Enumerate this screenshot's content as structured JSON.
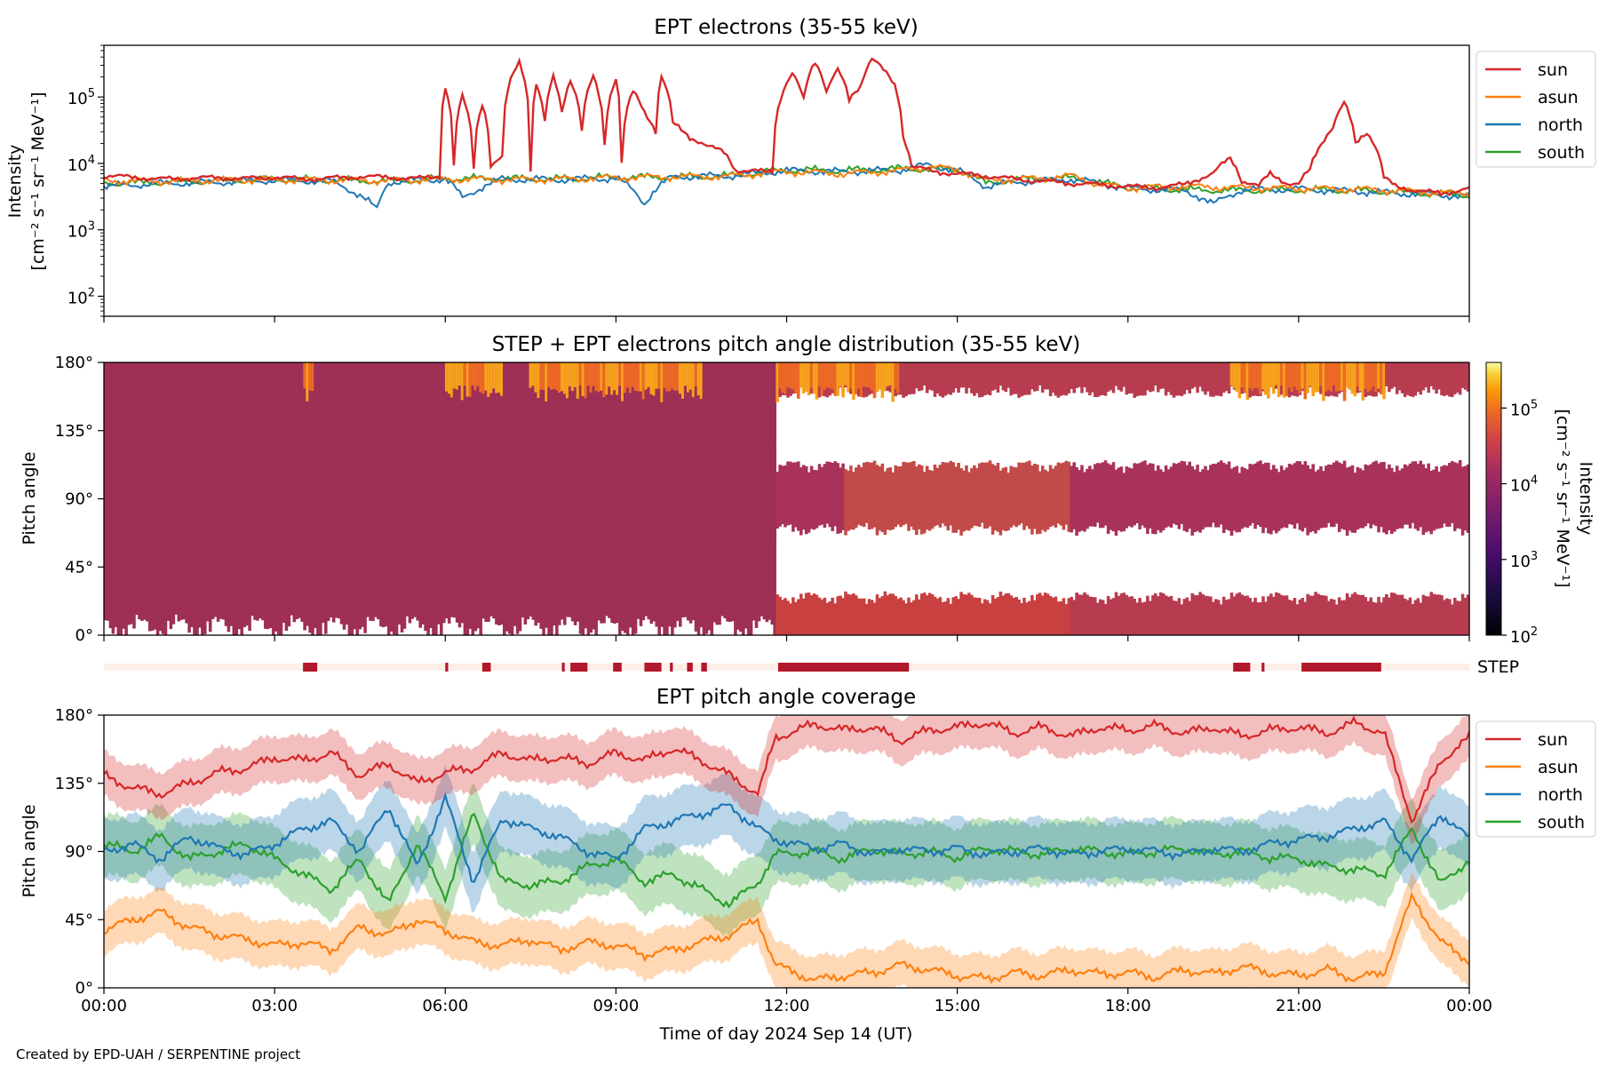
{
  "footer": "Created by EPD-UAH / SERPENTINE project",
  "colors": {
    "sun": "#d62728",
    "asun": "#ff7f0e",
    "north": "#1f77b4",
    "south": "#2ca02c",
    "step_bar": "#b2182b",
    "step_bg": "#fdeee7"
  },
  "chart_data": [
    {
      "type": "line",
      "title": "EPT electrons (35-55 keV)",
      "ylabel": [
        "Intensity",
        "[cm⁻² s⁻¹ sr⁻¹ MeV⁻¹]"
      ],
      "yscale": "log",
      "ylim": [
        50,
        600000
      ],
      "yticks": [
        {
          "v": 100,
          "b": "10",
          "e": "2"
        },
        {
          "v": 1000,
          "b": "10",
          "e": "3"
        },
        {
          "v": 10000,
          "b": "10",
          "e": "4"
        },
        {
          "v": 100000,
          "b": "10",
          "e": "5"
        }
      ],
      "xlim_hours": [
        0,
        24
      ],
      "legend": "outside-right",
      "series": [
        {
          "name": "sun",
          "x_hours": [
            0,
            0.5,
            1,
            1.5,
            2,
            2.5,
            3,
            3.5,
            4,
            4.5,
            5,
            5.5,
            5.9,
            6.0,
            6.15,
            6.3,
            6.5,
            6.65,
            6.8,
            7.0,
            7.3,
            7.5,
            7.6,
            7.75,
            7.9,
            8.05,
            8.2,
            8.4,
            8.6,
            8.8,
            9.0,
            9.1,
            9.3,
            9.5,
            9.7,
            9.8,
            10.0,
            10.3,
            10.6,
            10.9,
            11.1,
            11.3,
            11.75,
            11.9,
            12.1,
            12.3,
            12.5,
            12.7,
            12.9,
            13.1,
            13.3,
            13.5,
            13.7,
            13.9,
            14.05,
            14.2,
            14.6,
            15,
            15.5,
            16,
            16.5,
            17,
            17.5,
            18,
            18.5,
            19,
            19.5,
            19.8,
            20.0,
            20.3,
            20.5,
            20.8,
            21,
            21.2,
            21.4,
            21.6,
            21.8,
            22.0,
            22.2,
            22.5,
            22.7,
            23,
            23.5,
            24
          ],
          "values": [
            6500,
            6200,
            5800,
            6000,
            6100,
            5900,
            6200,
            5800,
            6000,
            6300,
            6200,
            5900,
            6500,
            140000,
            9000,
            100000,
            9000,
            80000,
            9000,
            12000,
            350000,
            8000,
            150000,
            40000,
            200000,
            60000,
            180000,
            30000,
            200000,
            20000,
            190000,
            10000,
            120000,
            60000,
            30000,
            200000,
            40000,
            25000,
            18000,
            15000,
            8000,
            7500,
            7800,
            100000,
            220000,
            90000,
            350000,
            120000,
            250000,
            90000,
            150000,
            380000,
            250000,
            150000,
            25000,
            9000,
            7500,
            7000,
            6500,
            5800,
            5400,
            5000,
            4800,
            4500,
            4300,
            4800,
            7000,
            12000,
            5500,
            4500,
            7000,
            5000,
            4800,
            8000,
            20000,
            35000,
            80000,
            20000,
            30000,
            6000,
            4500,
            4000,
            3500,
            4200
          ]
        },
        {
          "name": "asun",
          "x_hours": [
            0,
            1,
            2,
            3,
            4,
            5,
            6,
            7,
            8,
            9,
            10,
            11,
            11.9,
            12.5,
            13,
            14,
            14.5,
            15,
            15.5,
            16,
            16.5,
            17,
            17.5,
            18,
            19,
            20,
            21,
            22,
            23,
            24
          ],
          "values": [
            5500,
            5400,
            5600,
            5700,
            5600,
            5500,
            5800,
            5700,
            5800,
            6100,
            6300,
            6400,
            7500,
            7300,
            7000,
            7800,
            9000,
            8000,
            5500,
            5800,
            6000,
            6500,
            4800,
            4300,
            4500,
            4300,
            4200,
            4100,
            3800,
            3500
          ]
        },
        {
          "name": "north",
          "x_hours": [
            0,
            1,
            2,
            3,
            4,
            4.8,
            5,
            5.5,
            6,
            6.3,
            7,
            8,
            9,
            9.5,
            10,
            11,
            12,
            13,
            14,
            14.5,
            15,
            15.5,
            16,
            17,
            18,
            19,
            19.5,
            20,
            21,
            22,
            23,
            24
          ],
          "values": [
            4500,
            5000,
            5200,
            5600,
            5400,
            2000,
            5200,
            5600,
            5800,
            3000,
            5800,
            5700,
            6000,
            2500,
            6300,
            6500,
            7800,
            7500,
            8000,
            9500,
            7800,
            4500,
            5200,
            5800,
            4200,
            3900,
            2400,
            4000,
            4100,
            3800,
            3500,
            3200
          ]
        },
        {
          "name": "south",
          "x_hours": [
            0,
            1,
            2,
            3,
            4,
            5,
            6,
            7,
            8,
            9,
            10,
            11,
            12,
            13,
            14,
            15,
            15.5,
            16,
            17,
            18,
            19,
            20,
            21,
            22,
            23,
            24
          ],
          "values": [
            5000,
            5200,
            5400,
            5800,
            5600,
            5400,
            5900,
            5900,
            5800,
            6200,
            6200,
            6500,
            8000,
            7800,
            8300,
            8000,
            5000,
            5700,
            6000,
            4300,
            4000,
            3900,
            4000,
            3900,
            3600,
            3300
          ]
        }
      ]
    },
    {
      "type": "heatmap",
      "title": "STEP + EPT electrons pitch angle distribution (35-55 keV)",
      "ylabel": "Pitch angle",
      "ylim": [
        0,
        180
      ],
      "yticks": [
        "0°",
        "45°",
        "90°",
        "135°",
        "180°"
      ],
      "xlim_hours": [
        0,
        24
      ],
      "colorbar": {
        "label": [
          "Intensity",
          "[cm⁻² s⁻¹ sr⁻¹ MeV⁻¹]"
        ],
        "scale": "log",
        "range": [
          100,
          400000
        ],
        "ticks": [
          {
            "v": 100,
            "b": "10",
            "e": "2"
          },
          {
            "v": 1000,
            "b": "10",
            "e": "3"
          },
          {
            "v": 10000,
            "b": "10",
            "e": "4"
          },
          {
            "v": 100000,
            "b": "10",
            "e": "5"
          }
        ]
      },
      "coverage_bands": [
        {
          "from_hours": 0,
          "to_hours": 11.8,
          "bands_deg": [
            [
              5,
              75
            ],
            [
              95,
              155
            ],
            [
              60,
              120
            ],
            [
              130,
              180
            ]
          ]
        },
        {
          "from_hours": 11.8,
          "to_hours": 24,
          "bands_deg": [
            [
              0,
              25
            ],
            [
              70,
              112
            ],
            [
              160,
              180
            ]
          ]
        }
      ],
      "high_intensity_at_180": [
        [
          3.5,
          3.7
        ],
        [
          6.0,
          7.0
        ],
        [
          7.5,
          10.5
        ],
        [
          11.8,
          14.0
        ],
        [
          19.8,
          22.5
        ]
      ]
    },
    {
      "type": "bar",
      "label": "STEP",
      "intervals_hours": [
        [
          3.5,
          3.75
        ],
        [
          6.0,
          6.05
        ],
        [
          6.65,
          6.8
        ],
        [
          8.05,
          8.1
        ],
        [
          8.2,
          8.5
        ],
        [
          8.95,
          9.1
        ],
        [
          9.5,
          9.8
        ],
        [
          9.95,
          10.0
        ],
        [
          10.25,
          10.35
        ],
        [
          10.5,
          10.6
        ],
        [
          11.85,
          14.15
        ],
        [
          19.85,
          20.15
        ],
        [
          20.35,
          20.4
        ],
        [
          21.05,
          22.45
        ]
      ]
    },
    {
      "type": "line",
      "title": "EPT pitch angle coverage",
      "ylabel": "Pitch angle",
      "xlabel": "Time of day 2024 Sep 14 (UT)",
      "ylim": [
        0,
        180
      ],
      "yticks": [
        "0°",
        "45°",
        "90°",
        "135°",
        "180°"
      ],
      "xticks": [
        "00:00",
        "03:00",
        "06:00",
        "09:00",
        "12:00",
        "15:00",
        "18:00",
        "21:00",
        "00:00"
      ],
      "legend": "outside-right",
      "series": [
        {
          "name": "sun",
          "x_hours": [
            0,
            0.5,
            1,
            1.5,
            2,
            2.5,
            3,
            3.5,
            4,
            4.5,
            5,
            5.5,
            6,
            6.5,
            7,
            7.5,
            8,
            8.5,
            9,
            9.5,
            10,
            10.5,
            11,
            11.5,
            11.8,
            12.5,
            13,
            13.5,
            14,
            14.5,
            15,
            15.5,
            16,
            16.5,
            17,
            17.5,
            18,
            18.5,
            19,
            19.5,
            20,
            20.5,
            21,
            21.5,
            22,
            22.5,
            23,
            23.5,
            24
          ],
          "values": [
            140,
            132,
            128,
            135,
            142,
            145,
            152,
            150,
            155,
            140,
            148,
            135,
            142,
            145,
            155,
            150,
            152,
            148,
            155,
            150,
            158,
            150,
            140,
            128,
            165,
            174,
            170,
            172,
            163,
            170,
            172,
            175,
            168,
            172,
            166,
            172,
            170,
            173,
            168,
            172,
            166,
            170,
            172,
            168,
            175,
            168,
            110,
            150,
            165
          ],
          "band": 15
        },
        {
          "name": "asun",
          "x_hours": [
            0,
            0.5,
            1,
            1.5,
            2,
            2.5,
            3,
            3.5,
            4,
            4.5,
            5,
            5.5,
            6,
            6.5,
            7,
            7.5,
            8,
            8.5,
            9,
            9.5,
            10,
            10.5,
            11,
            11.5,
            11.8,
            12.5,
            13,
            13.5,
            14,
            14.5,
            15,
            15.5,
            16,
            16.5,
            17,
            17.5,
            18,
            18.5,
            19,
            19.5,
            20,
            20.5,
            21,
            21.5,
            22,
            22.5,
            23,
            23.5,
            24
          ],
          "values": [
            38,
            45,
            50,
            40,
            35,
            32,
            28,
            30,
            25,
            40,
            35,
            45,
            38,
            30,
            28,
            32,
            25,
            30,
            28,
            22,
            25,
            30,
            35,
            45,
            15,
            5,
            8,
            10,
            15,
            12,
            8,
            6,
            10,
            8,
            12,
            9,
            10,
            7,
            12,
            9,
            14,
            10,
            8,
            12,
            6,
            10,
            60,
            30,
            18
          ],
          "band": 15
        },
        {
          "name": "north",
          "x_hours": [
            0,
            0.5,
            1,
            1.5,
            2,
            2.5,
            3,
            3.5,
            4,
            4.5,
            5,
            5.5,
            6,
            6.5,
            7,
            7.5,
            8,
            8.5,
            9,
            9.5,
            10,
            10.5,
            11,
            11.5,
            11.8,
            12.5,
            13,
            13.5,
            14,
            14.5,
            15,
            15.5,
            16,
            16.5,
            17,
            17.5,
            18,
            18.5,
            19,
            19.5,
            20,
            20.5,
            21,
            21.5,
            22,
            22.5,
            23,
            23.5,
            24
          ],
          "values": [
            90,
            95,
            85,
            100,
            92,
            88,
            95,
            105,
            110,
            90,
            120,
            80,
            125,
            70,
            112,
            105,
            100,
            90,
            85,
            105,
            110,
            115,
            120,
            105,
            98,
            92,
            95,
            88,
            92,
            90,
            92,
            88,
            90,
            92,
            88,
            90,
            92,
            90,
            88,
            92,
            90,
            95,
            98,
            100,
            105,
            110,
            85,
            115,
            98
          ],
          "band": 20
        },
        {
          "name": "south",
          "x_hours": [
            0,
            0.5,
            1,
            1.5,
            2,
            2.5,
            3,
            3.5,
            4,
            4.5,
            5,
            5.5,
            6,
            6.5,
            7,
            7.5,
            8,
            8.5,
            9,
            9.5,
            10,
            10.5,
            11,
            11.5,
            11.8,
            12.5,
            13,
            13.5,
            14,
            14.5,
            15,
            15.5,
            16,
            16.5,
            17,
            17.5,
            18,
            18.5,
            19,
            19.5,
            20,
            20.5,
            21,
            21.5,
            22,
            22.5,
            23,
            23.5,
            24
          ],
          "values": [
            95,
            90,
            100,
            85,
            90,
            95,
            85,
            75,
            65,
            85,
            55,
            95,
            60,
            115,
            70,
            68,
            70,
            80,
            85,
            70,
            75,
            65,
            55,
            70,
            88,
            90,
            85,
            92,
            88,
            90,
            86,
            92,
            90,
            88,
            92,
            90,
            88,
            90,
            92,
            88,
            90,
            86,
            85,
            80,
            78,
            75,
            105,
            68,
            85
          ],
          "band": 20
        }
      ]
    }
  ]
}
